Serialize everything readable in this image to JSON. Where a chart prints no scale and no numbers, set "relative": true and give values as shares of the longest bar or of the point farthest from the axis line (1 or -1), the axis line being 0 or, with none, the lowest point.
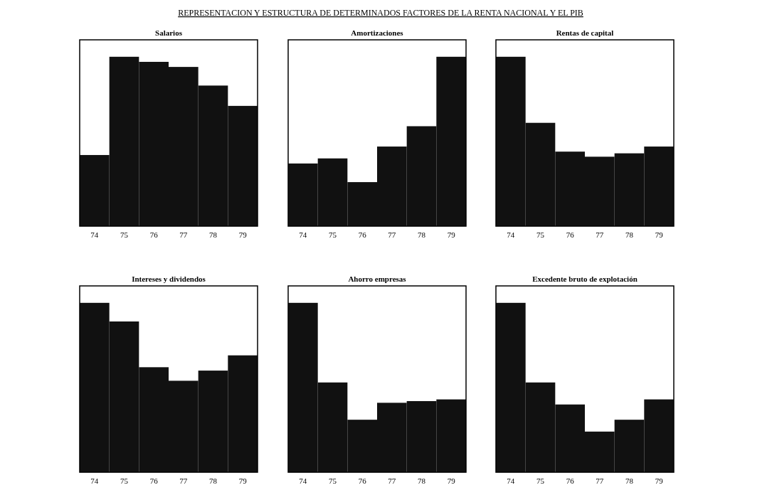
{
  "chart_data": [
    {
      "type": "bar",
      "title": "Salarios",
      "annotations": [
        "REPRESENTACION Y ESTRUCTURA DE DETERMINADOS FACTORES DE LA RENTA NACIONAL Y EL PIB"
      ],
      "categories": [
        "74",
        "75",
        "76",
        "77",
        "78",
        "79"
      ],
      "relative": true,
      "color": "#111111",
      "values": [
        0.42,
        1,
        0.97,
        0.94,
        0.83,
        0.71
      ]
    },
    {
      "type": "bar",
      "title": "Amortizaciones",
      "categories": [
        "74",
        "75",
        "76",
        "77",
        "78",
        "79"
      ],
      "relative": true,
      "color": "#111111",
      "values": [
        0.37,
        0.4,
        0.26,
        0.47,
        0.59,
        1
      ]
    },
    {
      "type": "bar",
      "title": "Rentas de capital",
      "categories": [
        "74",
        "75",
        "76",
        "77",
        "78",
        "79"
      ],
      "relative": true,
      "color": "#111111",
      "values": [
        1,
        0.61,
        0.44,
        0.41,
        0.43,
        0.47
      ]
    },
    {
      "type": "bar",
      "title": "Intereses y dividendos",
      "categories": [
        "74",
        "75",
        "76",
        "77",
        "78",
        "79"
      ],
      "relative": true,
      "color": "#111111",
      "values": [
        1,
        0.89,
        0.62,
        0.54,
        0.6,
        0.69
      ]
    },
    {
      "type": "bar",
      "title": "Ahorro empresas",
      "categories": [
        "74",
        "75",
        "76",
        "77",
        "78",
        "79"
      ],
      "relative": true,
      "color": "#111111",
      "values": [
        1,
        0.53,
        0.31,
        0.41,
        0.42,
        0.43
      ]
    },
    {
      "type": "bar",
      "title": "Excedente bruto de explotación",
      "categories": [
        "74",
        "75",
        "76",
        "77",
        "78",
        "79"
      ],
      "relative": true,
      "color": "#111111",
      "values": [
        1,
        0.53,
        0.4,
        0.24,
        0.31,
        0.43
      ]
    }
  ]
}
